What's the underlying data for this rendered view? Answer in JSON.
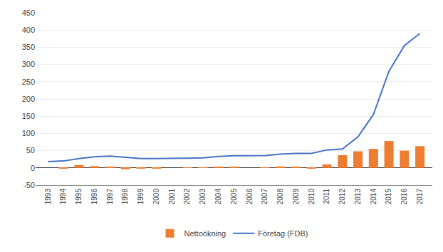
{
  "chart_data": {
    "type": "bar",
    "x": [
      1993,
      1994,
      1995,
      1996,
      1997,
      1998,
      1999,
      2000,
      2001,
      2002,
      2003,
      2004,
      2005,
      2006,
      2007,
      2008,
      2009,
      2010,
      2011,
      2012,
      2013,
      2014,
      2015,
      2016,
      2017
    ],
    "series": [
      {
        "name": "Nettoökning",
        "type": "bar",
        "color": "#ED7D31",
        "values": [
          null,
          -2,
          8,
          5,
          2,
          -4,
          -2,
          -1,
          0,
          1,
          1,
          3,
          2,
          0,
          1,
          4,
          2,
          -1,
          10,
          37,
          48,
          55,
          78,
          50,
          63
        ]
      },
      {
        "name": "Företag (FDB)",
        "type": "line",
        "color": "#4472C4",
        "values": [
          18,
          20,
          27,
          32,
          34,
          30,
          27,
          27,
          27,
          28,
          29,
          33,
          35,
          35,
          36,
          40,
          42,
          42,
          52,
          55,
          90,
          155,
          280,
          355,
          390
        ]
      }
    ],
    "xlim": [
      1992.2,
      2017.8
    ],
    "xticks": [
      1993,
      1994,
      1995,
      1996,
      1997,
      1998,
      1999,
      2000,
      2001,
      2002,
      2003,
      2004,
      2005,
      2006,
      2007,
      2008,
      2009,
      2010,
      2011,
      2012,
      2013,
      2014,
      2015,
      2016,
      2017
    ],
    "ylim": [
      -50,
      450
    ],
    "yticks": [
      -50,
      0,
      50,
      100,
      150,
      200,
      250,
      300,
      350,
      400,
      450
    ],
    "grid": true,
    "legend": "bottom"
  }
}
